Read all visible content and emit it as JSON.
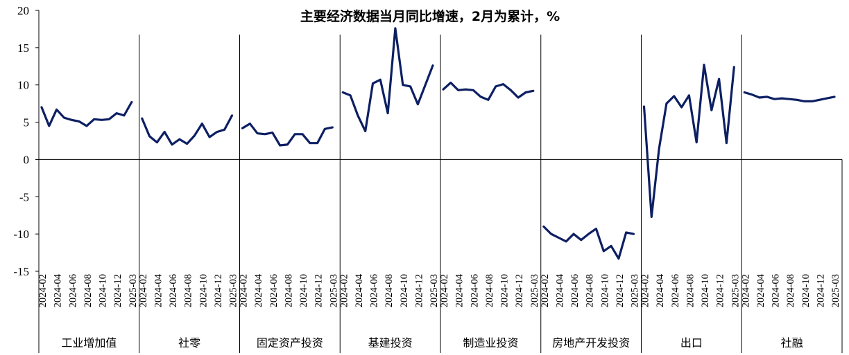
{
  "chart_data": {
    "type": "line",
    "title": "主要经济数据当月同比增速，2月为累计，%",
    "ylim": [
      -15,
      20
    ],
    "yticks": [
      20,
      15,
      10,
      5,
      0,
      -5,
      -10,
      -15
    ],
    "x": [
      "2024-02",
      "2024-03",
      "2024-04",
      "2024-05",
      "2024-06",
      "2024-07",
      "2024-08",
      "2024-09",
      "2024-10",
      "2024-11",
      "2024-12",
      "2025-01",
      "2025-03"
    ],
    "x_tick_labels": [
      "2024-02",
      "2024-04",
      "2024-06",
      "2024-08",
      "2024-10",
      "2024-12",
      "2025-03"
    ],
    "line_color": "#0d1f63",
    "series": [
      {
        "name": "工业增加值",
        "values": [
          7.0,
          4.5,
          6.7,
          5.6,
          5.3,
          5.1,
          4.5,
          5.4,
          5.3,
          5.4,
          6.2,
          5.9,
          7.7
        ]
      },
      {
        "name": "社零",
        "values": [
          5.5,
          3.1,
          2.3,
          3.7,
          2.0,
          2.7,
          2.1,
          3.2,
          4.8,
          3.0,
          3.7,
          4.0,
          5.9
        ]
      },
      {
        "name": "固定资产投资",
        "values": [
          4.2,
          4.8,
          3.5,
          3.4,
          3.6,
          1.9,
          2.0,
          3.4,
          3.4,
          2.2,
          2.2,
          4.1,
          4.3
        ]
      },
      {
        "name": "基建投资",
        "values": [
          9.0,
          8.6,
          5.9,
          3.8,
          10.2,
          10.7,
          6.2,
          17.6,
          10.0,
          9.8,
          7.4,
          10.0,
          12.6
        ]
      },
      {
        "name": "制造业投资",
        "values": [
          9.4,
          10.3,
          9.3,
          9.4,
          9.3,
          8.4,
          8.0,
          9.8,
          10.1,
          9.3,
          8.3,
          9.0,
          9.2
        ]
      },
      {
        "name": "房地产开发投资",
        "values": [
          -9.0,
          -10.0,
          -10.5,
          -11.0,
          -10.0,
          -10.8,
          -10.0,
          -9.3,
          -12.3,
          -11.6,
          -13.3,
          -9.8,
          -10.0
        ]
      },
      {
        "name": "出口",
        "values": [
          7.1,
          -7.7,
          1.4,
          7.5,
          8.5,
          7.0,
          8.6,
          2.3,
          12.7,
          6.6,
          10.8,
          2.2,
          12.4
        ]
      },
      {
        "name": "社融",
        "values": [
          9.0,
          8.7,
          8.3,
          8.4,
          8.1,
          8.2,
          8.1,
          8.0,
          7.8,
          7.8,
          8.0,
          8.2,
          8.4
        ]
      }
    ],
    "xlabel": "",
    "ylabel": "",
    "grid": false,
    "legend": "none"
  }
}
